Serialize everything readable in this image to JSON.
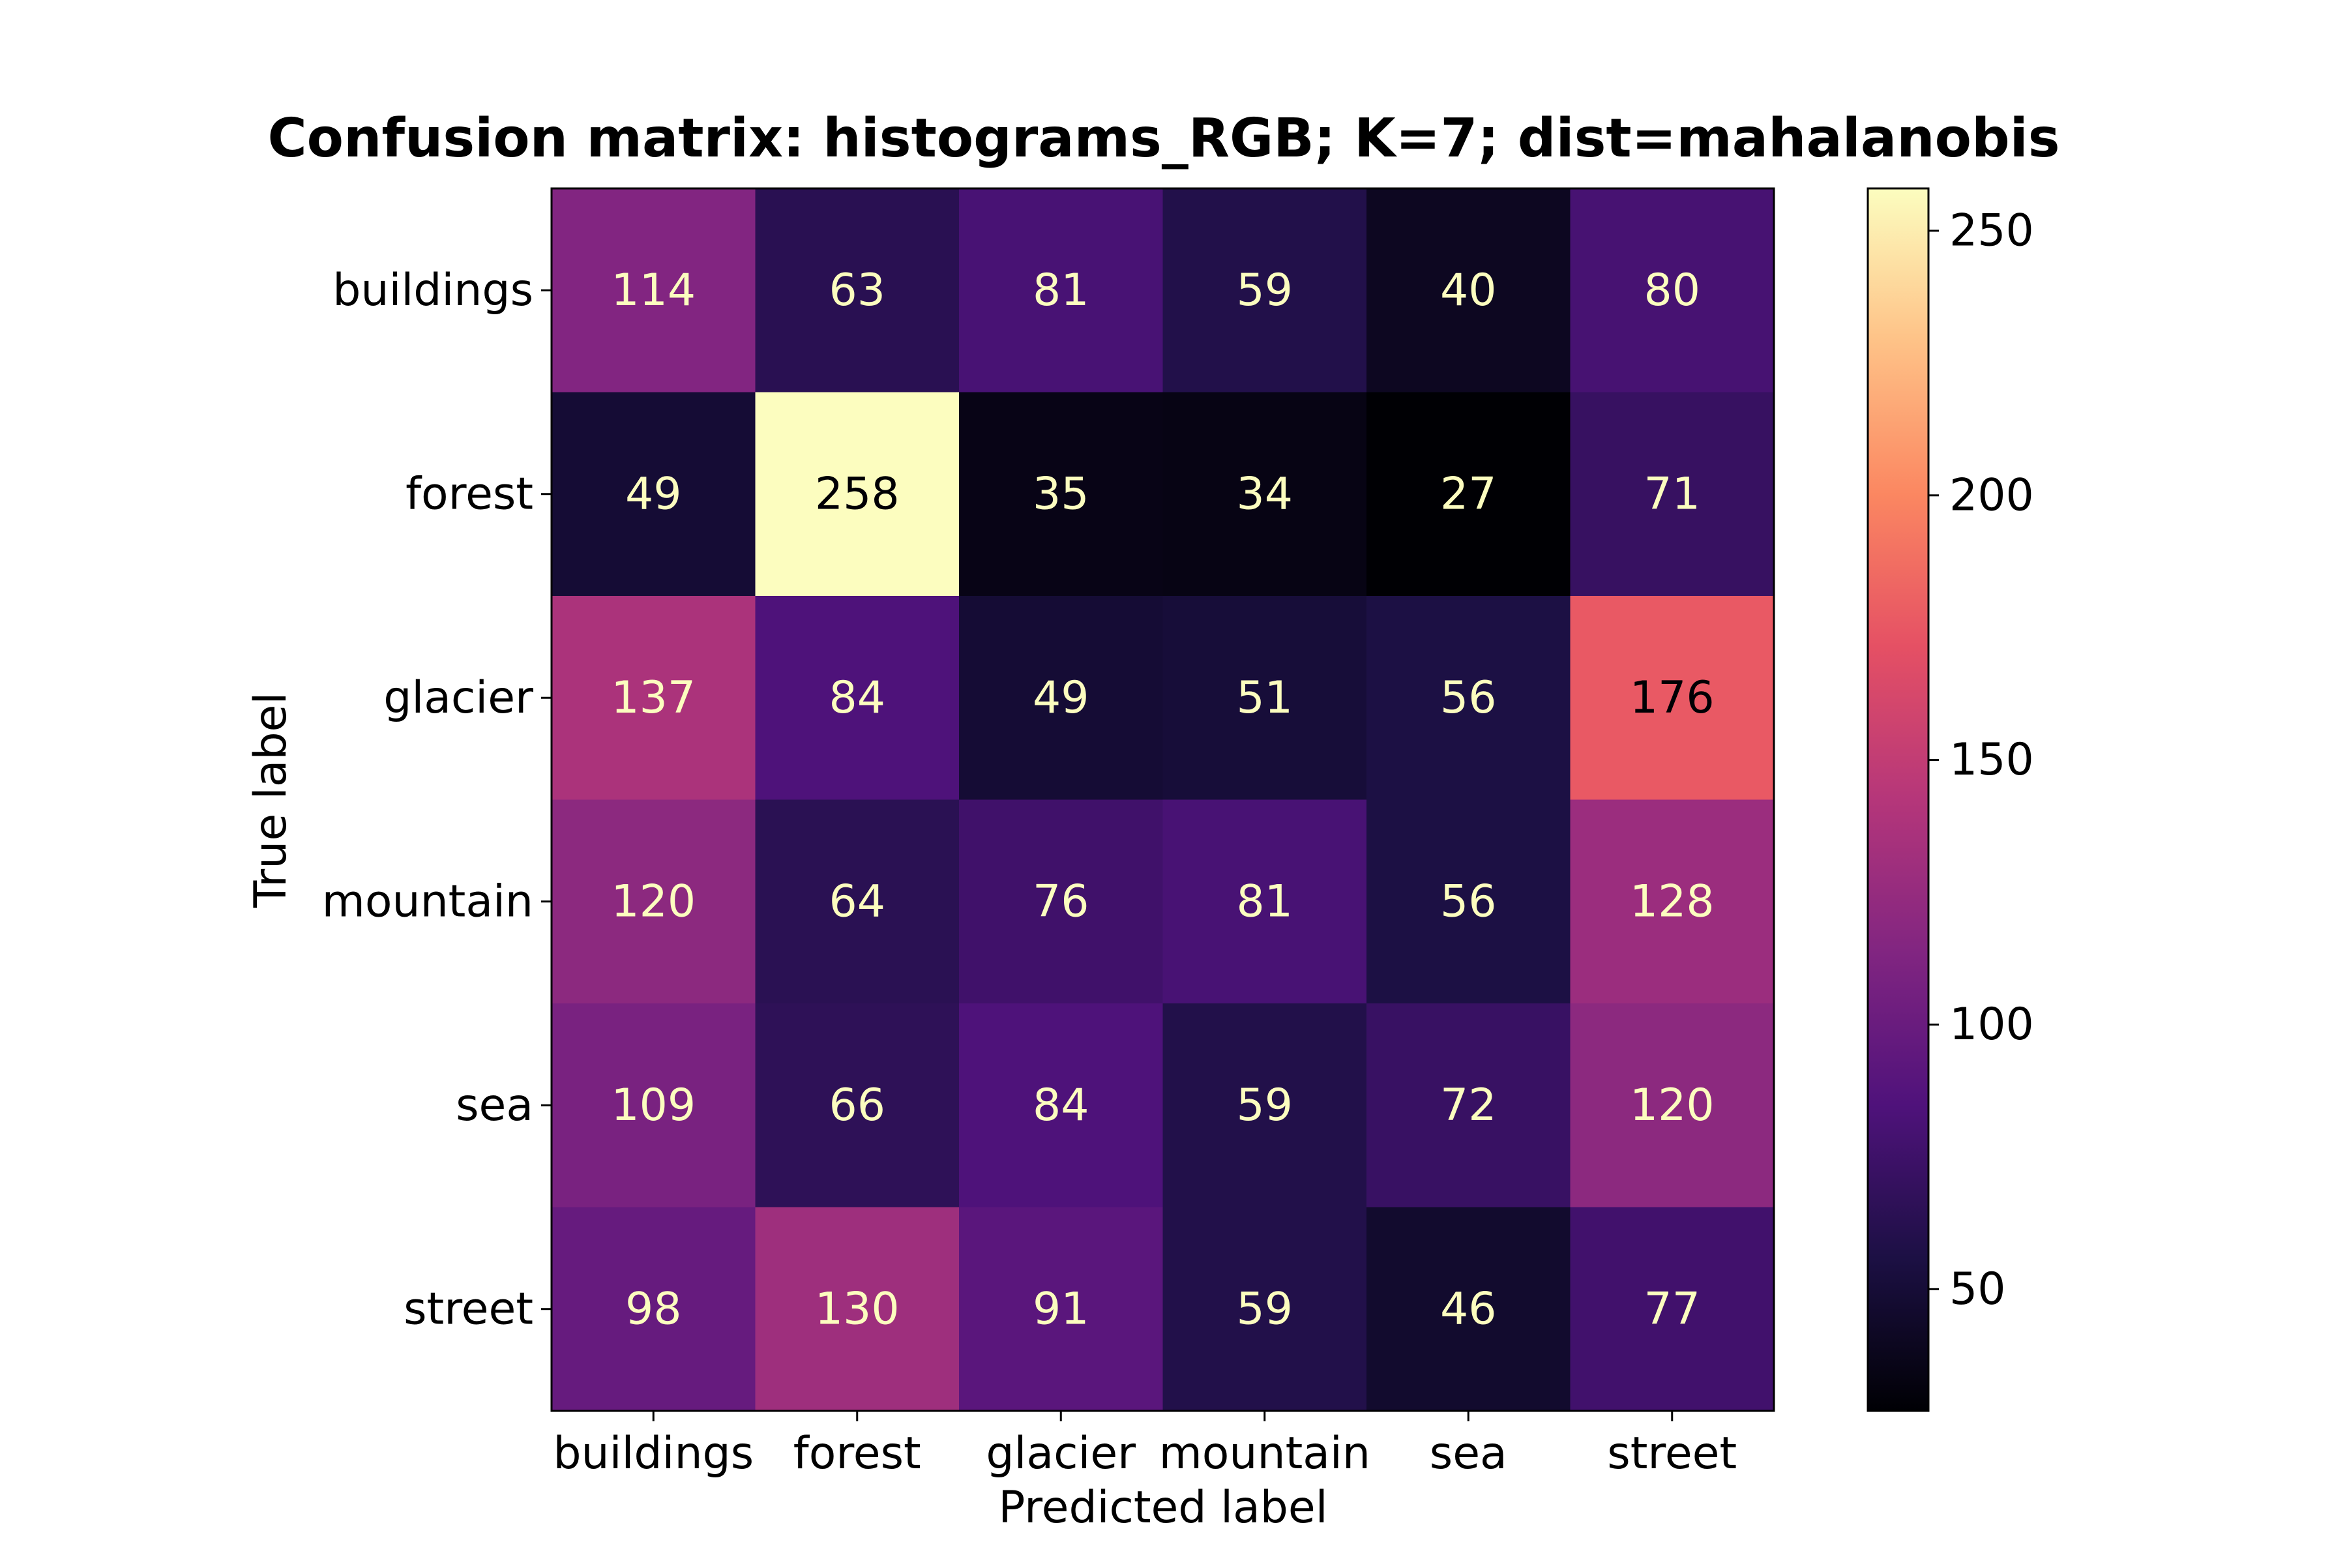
{
  "chart_data": {
    "type": "heatmap",
    "title": "Confusion matrix: histograms_RGB; K=7; dist=mahalanobis",
    "xlabel": "Predicted label",
    "ylabel": "True label",
    "x_categories": [
      "buildings",
      "forest",
      "glacier",
      "mountain",
      "sea",
      "street"
    ],
    "y_categories": [
      "buildings",
      "forest",
      "glacier",
      "mountain",
      "sea",
      "street"
    ],
    "values": [
      [
        114,
        63,
        81,
        59,
        40,
        80
      ],
      [
        49,
        258,
        35,
        34,
        27,
        71
      ],
      [
        137,
        84,
        49,
        51,
        56,
        176
      ],
      [
        120,
        64,
        76,
        81,
        56,
        128
      ],
      [
        109,
        66,
        84,
        59,
        72,
        120
      ],
      [
        98,
        130,
        91,
        59,
        46,
        77
      ]
    ],
    "colormap": "magma",
    "color_range": [
      27,
      258
    ],
    "colorbar_ticks": [
      50,
      100,
      150,
      200,
      250
    ],
    "text_color_light": "#fcfdbf",
    "text_color_dark": "#000004"
  }
}
